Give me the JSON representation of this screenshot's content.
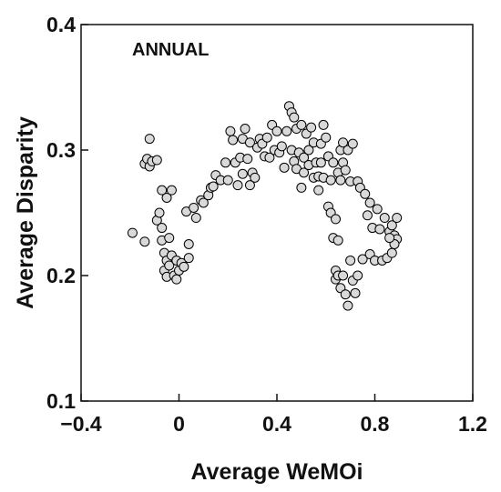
{
  "chart_data": {
    "type": "scatter",
    "annotation": "ANNUAL",
    "xlabel": "Average WeMOi",
    "ylabel": "Average Disparity",
    "xlim": [
      -0.4,
      1.2
    ],
    "ylim": [
      0.1,
      0.4
    ],
    "x_ticks": [
      -0.4,
      0,
      0.4,
      0.8,
      1.2
    ],
    "x_tick_labels": [
      "−0.4",
      "0",
      "0.4",
      "0.8",
      "1.2"
    ],
    "y_ticks": [
      0.1,
      0.2,
      0.3,
      0.4
    ],
    "y_tick_labels": [
      "0.1",
      "0.2",
      "0.3",
      "0.4"
    ],
    "grid": false,
    "marker_fill": "#d9d9d9",
    "marker_edge": "#000000",
    "points": [
      [
        -0.19,
        0.234
      ],
      [
        -0.14,
        0.227
      ],
      [
        -0.14,
        0.289
      ],
      [
        -0.13,
        0.293
      ],
      [
        -0.12,
        0.309
      ],
      [
        -0.12,
        0.287
      ],
      [
        -0.11,
        0.291
      ],
      [
        -0.09,
        0.292
      ],
      [
        -0.09,
        0.244
      ],
      [
        -0.08,
        0.25
      ],
      [
        -0.07,
        0.268
      ],
      [
        -0.07,
        0.238
      ],
      [
        -0.07,
        0.228
      ],
      [
        -0.06,
        0.218
      ],
      [
        -0.06,
        0.204
      ],
      [
        -0.05,
        0.262
      ],
      [
        -0.05,
        0.212
      ],
      [
        -0.05,
        0.199
      ],
      [
        -0.04,
        0.23
      ],
      [
        -0.04,
        0.208
      ],
      [
        -0.03,
        0.268
      ],
      [
        -0.03,
        0.216
      ],
      [
        -0.02,
        0.2
      ],
      [
        -0.01,
        0.212
      ],
      [
        -0.01,
        0.197
      ],
      [
        0.0,
        0.204
      ],
      [
        0.01,
        0.21
      ],
      [
        0.02,
        0.207
      ],
      [
        0.03,
        0.251
      ],
      [
        0.04,
        0.214
      ],
      [
        0.04,
        0.225
      ],
      [
        0.06,
        0.254
      ],
      [
        0.07,
        0.246
      ],
      [
        0.09,
        0.26
      ],
      [
        0.1,
        0.258
      ],
      [
        0.12,
        0.264
      ],
      [
        0.13,
        0.27
      ],
      [
        0.14,
        0.271
      ],
      [
        0.15,
        0.28
      ],
      [
        0.17,
        0.276
      ],
      [
        0.19,
        0.29
      ],
      [
        0.2,
        0.276
      ],
      [
        0.21,
        0.315
      ],
      [
        0.22,
        0.308
      ],
      [
        0.23,
        0.29
      ],
      [
        0.24,
        0.272
      ],
      [
        0.25,
        0.294
      ],
      [
        0.26,
        0.309
      ],
      [
        0.26,
        0.281
      ],
      [
        0.27,
        0.317
      ],
      [
        0.28,
        0.293
      ],
      [
        0.29,
        0.272
      ],
      [
        0.29,
        0.306
      ],
      [
        0.3,
        0.282
      ],
      [
        0.31,
        0.278
      ],
      [
        0.32,
        0.302
      ],
      [
        0.33,
        0.309
      ],
      [
        0.34,
        0.305
      ],
      [
        0.35,
        0.295
      ],
      [
        0.36,
        0.31
      ],
      [
        0.37,
        0.294
      ],
      [
        0.38,
        0.32
      ],
      [
        0.39,
        0.3
      ],
      [
        0.4,
        0.315
      ],
      [
        0.41,
        0.298
      ],
      [
        0.42,
        0.303
      ],
      [
        0.43,
        0.286
      ],
      [
        0.44,
        0.315
      ],
      [
        0.45,
        0.335
      ],
      [
        0.46,
        0.33
      ],
      [
        0.46,
        0.3
      ],
      [
        0.47,
        0.326
      ],
      [
        0.47,
        0.291
      ],
      [
        0.48,
        0.317
      ],
      [
        0.48,
        0.285
      ],
      [
        0.49,
        0.298
      ],
      [
        0.5,
        0.32
      ],
      [
        0.5,
        0.27
      ],
      [
        0.51,
        0.294
      ],
      [
        0.51,
        0.282
      ],
      [
        0.52,
        0.313
      ],
      [
        0.53,
        0.3
      ],
      [
        0.53,
        0.288
      ],
      [
        0.54,
        0.318
      ],
      [
        0.55,
        0.306
      ],
      [
        0.55,
        0.278
      ],
      [
        0.56,
        0.29
      ],
      [
        0.57,
        0.268
      ],
      [
        0.57,
        0.279
      ],
      [
        0.58,
        0.305
      ],
      [
        0.58,
        0.29
      ],
      [
        0.59,
        0.32
      ],
      [
        0.59,
        0.278
      ],
      [
        0.6,
        0.31
      ],
      [
        0.61,
        0.295
      ],
      [
        0.61,
        0.255
      ],
      [
        0.62,
        0.276
      ],
      [
        0.62,
        0.25
      ],
      [
        0.63,
        0.29
      ],
      [
        0.63,
        0.23
      ],
      [
        0.64,
        0.245
      ],
      [
        0.64,
        0.204
      ],
      [
        0.64,
        0.197
      ],
      [
        0.65,
        0.282
      ],
      [
        0.65,
        0.228
      ],
      [
        0.65,
        0.2
      ],
      [
        0.66,
        0.3
      ],
      [
        0.66,
        0.276
      ],
      [
        0.66,
        0.19
      ],
      [
        0.67,
        0.306
      ],
      [
        0.67,
        0.29
      ],
      [
        0.67,
        0.2
      ],
      [
        0.68,
        0.284
      ],
      [
        0.68,
        0.185
      ],
      [
        0.69,
        0.3
      ],
      [
        0.69,
        0.176
      ],
      [
        0.7,
        0.275
      ],
      [
        0.7,
        0.212
      ],
      [
        0.71,
        0.305
      ],
      [
        0.71,
        0.196
      ],
      [
        0.72,
        0.186
      ],
      [
        0.73,
        0.275
      ],
      [
        0.73,
        0.2
      ],
      [
        0.74,
        0.27
      ],
      [
        0.75,
        0.213
      ],
      [
        0.76,
        0.265
      ],
      [
        0.77,
        0.248
      ],
      [
        0.78,
        0.258
      ],
      [
        0.78,
        0.217
      ],
      [
        0.79,
        0.238
      ],
      [
        0.8,
        0.212
      ],
      [
        0.81,
        0.253
      ],
      [
        0.82,
        0.237
      ],
      [
        0.83,
        0.212
      ],
      [
        0.84,
        0.246
      ],
      [
        0.85,
        0.214
      ],
      [
        0.86,
        0.235
      ],
      [
        0.87,
        0.24
      ],
      [
        0.87,
        0.218
      ],
      [
        0.88,
        0.232
      ],
      [
        0.89,
        0.246
      ],
      [
        0.89,
        0.229
      ],
      [
        0.88,
        0.225
      ],
      [
        0.86,
        0.23
      ]
    ]
  }
}
